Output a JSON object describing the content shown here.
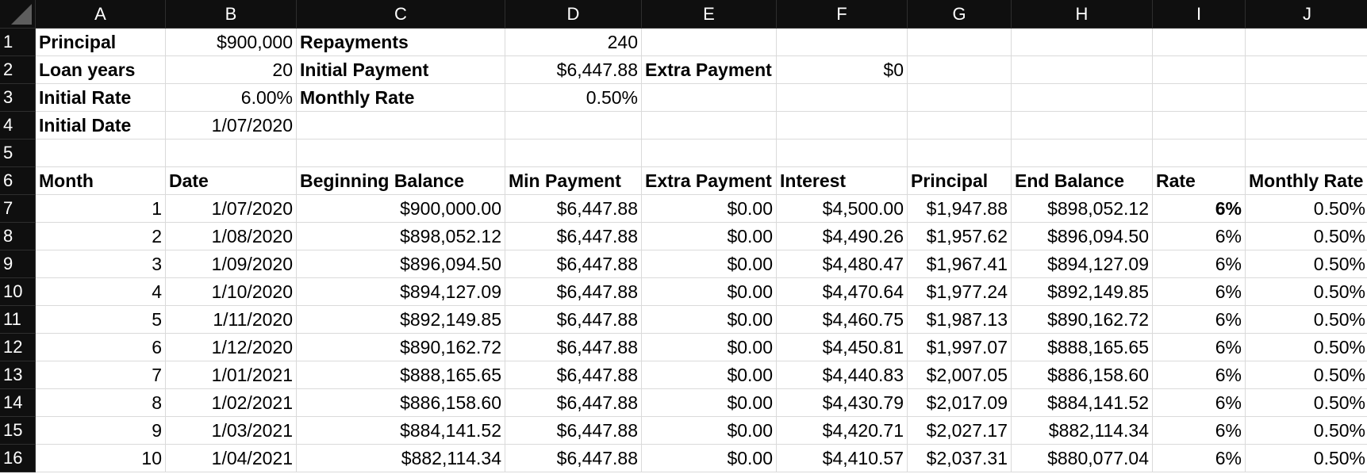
{
  "column_headers": [
    "A",
    "B",
    "C",
    "D",
    "E",
    "F",
    "G",
    "H",
    "I",
    "J"
  ],
  "row_numbers": [
    "1",
    "2",
    "3",
    "4",
    "5",
    "6",
    "7",
    "8",
    "9",
    "10",
    "11",
    "12",
    "13",
    "14",
    "15",
    "16"
  ],
  "summary": {
    "principal_label": "Principal",
    "principal_value": "$900,000",
    "loan_years_label": "Loan years",
    "loan_years_value": "20",
    "initial_rate_label": "Initial Rate",
    "initial_rate_value": "6.00%",
    "initial_date_label": "Initial Date",
    "initial_date_value": "1/07/2020",
    "repayments_label": "Repayments",
    "repayments_value": "240",
    "initial_payment_label": "Initial Payment",
    "initial_payment_value": "$6,447.88",
    "monthly_rate_label": "Monthly Rate",
    "monthly_rate_value": "0.50%",
    "extra_payment_label": "Extra Payment",
    "extra_payment_value": "$0"
  },
  "table": {
    "headers": [
      "Month",
      "Date",
      "Beginning Balance",
      "Min Payment",
      "Extra Payment",
      "Interest",
      "Principal",
      "End Balance",
      "Rate",
      "Monthly Rate"
    ],
    "rows": [
      [
        "1",
        "1/07/2020",
        "$900,000.00",
        "$6,447.88",
        "$0.00",
        "$4,500.00",
        "$1,947.88",
        "$898,052.12",
        "6%",
        "0.50%"
      ],
      [
        "2",
        "1/08/2020",
        "$898,052.12",
        "$6,447.88",
        "$0.00",
        "$4,490.26",
        "$1,957.62",
        "$896,094.50",
        "6%",
        "0.50%"
      ],
      [
        "3",
        "1/09/2020",
        "$896,094.50",
        "$6,447.88",
        "$0.00",
        "$4,480.47",
        "$1,967.41",
        "$894,127.09",
        "6%",
        "0.50%"
      ],
      [
        "4",
        "1/10/2020",
        "$894,127.09",
        "$6,447.88",
        "$0.00",
        "$4,470.64",
        "$1,977.24",
        "$892,149.85",
        "6%",
        "0.50%"
      ],
      [
        "5",
        "1/11/2020",
        "$892,149.85",
        "$6,447.88",
        "$0.00",
        "$4,460.75",
        "$1,987.13",
        "$890,162.72",
        "6%",
        "0.50%"
      ],
      [
        "6",
        "1/12/2020",
        "$890,162.72",
        "$6,447.88",
        "$0.00",
        "$4,450.81",
        "$1,997.07",
        "$888,165.65",
        "6%",
        "0.50%"
      ],
      [
        "7",
        "1/01/2021",
        "$888,165.65",
        "$6,447.88",
        "$0.00",
        "$4,440.83",
        "$2,007.05",
        "$886,158.60",
        "6%",
        "0.50%"
      ],
      [
        "8",
        "1/02/2021",
        "$886,158.60",
        "$6,447.88",
        "$0.00",
        "$4,430.79",
        "$2,017.09",
        "$884,141.52",
        "6%",
        "0.50%"
      ],
      [
        "9",
        "1/03/2021",
        "$884,141.52",
        "$6,447.88",
        "$0.00",
        "$4,420.71",
        "$2,027.17",
        "$882,114.34",
        "6%",
        "0.50%"
      ],
      [
        "10",
        "1/04/2021",
        "$882,114.34",
        "$6,447.88",
        "$0.00",
        "$4,410.57",
        "$2,037.31",
        "$880,077.04",
        "6%",
        "0.50%"
      ]
    ]
  }
}
